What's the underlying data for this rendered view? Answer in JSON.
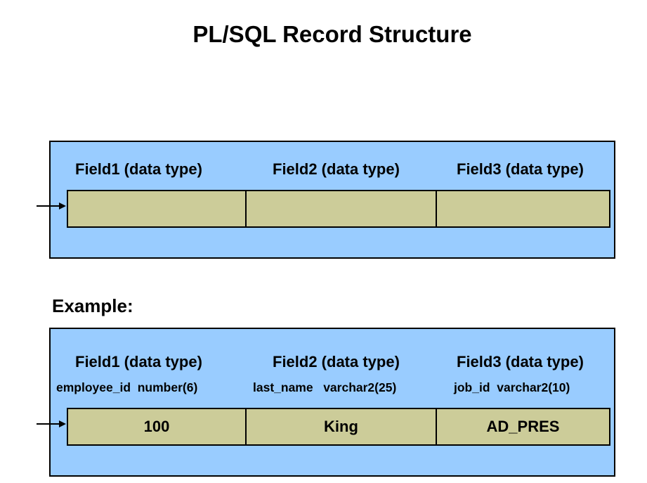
{
  "title": "PL/SQL Record Structure",
  "record": {
    "fields": [
      {
        "label": "Field1 (data type)"
      },
      {
        "label": "Field2 (data type)"
      },
      {
        "label": "Field3 (data type)"
      }
    ]
  },
  "example": {
    "label": "Example:",
    "fields": [
      {
        "label": "Field1 (data type)",
        "definition": "employee_id  number(6)",
        "value": "100"
      },
      {
        "label": "Field2 (data type)",
        "definition": "last_name   varchar2(25)",
        "value": "King"
      },
      {
        "label": "Field3 (data type)",
        "definition": "job_id  varchar2(10)",
        "value": "AD_PRES"
      }
    ]
  },
  "colors": {
    "panel": "#99ccff",
    "cell": "#cccc99",
    "border": "#000000"
  }
}
